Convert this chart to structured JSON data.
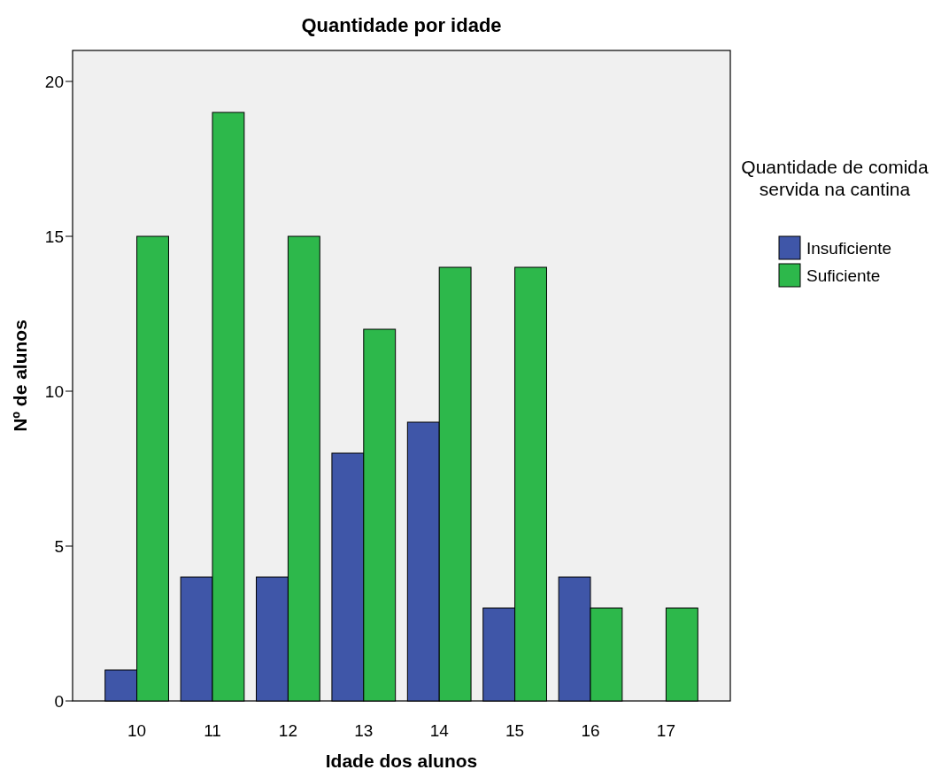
{
  "chart_data": {
    "type": "bar",
    "title": "Quantidade por idade",
    "xlabel": "Idade dos alunos",
    "ylabel": "Nº de alunos",
    "legend_title": "Quantidade de comida servida na cantina",
    "categories": [
      "10",
      "11",
      "12",
      "13",
      "14",
      "15",
      "16",
      "17"
    ],
    "series": [
      {
        "name": "Insuficiente",
        "color": "#3f56a8",
        "values": [
          1,
          4,
          4,
          8,
          9,
          3,
          4,
          null
        ]
      },
      {
        "name": "Suficiente",
        "color": "#2db84b",
        "values": [
          15,
          19,
          15,
          12,
          14,
          14,
          3,
          3
        ]
      }
    ],
    "ylim": [
      0,
      21
    ],
    "yticks": [
      0,
      5,
      10,
      15,
      20
    ],
    "grid": false,
    "legend": "right"
  }
}
